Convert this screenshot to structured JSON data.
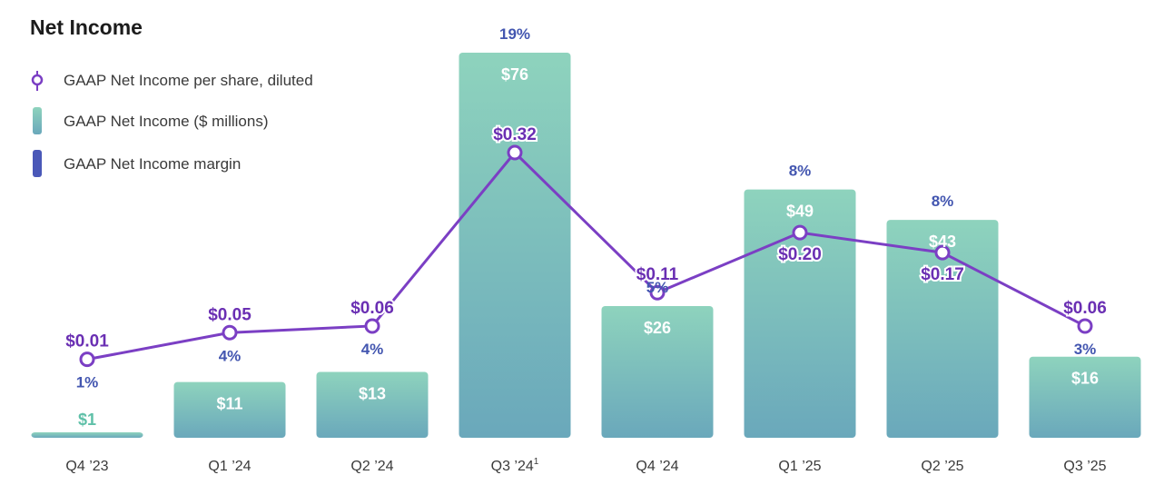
{
  "chart_data": {
    "type": "bar",
    "title": "Net Income",
    "categories": [
      "Q4 '23",
      "Q1 '24",
      "Q2 '24",
      "Q3 '24",
      "Q4 '24",
      "Q1 '25",
      "Q2 '25",
      "Q3 '25"
    ],
    "category_labels": [
      "Q4 ’23",
      "Q1 ’24",
      "Q2 ’24",
      "Q3 ’24",
      "Q4 ’24",
      "Q1 ’25",
      "Q2 ’25",
      "Q3 ’25"
    ],
    "category_footnotes": [
      "",
      "",
      "",
      "1",
      "",
      "",
      "",
      ""
    ],
    "series": [
      {
        "name": "GAAP Net Income ($ millions)",
        "kind": "bar",
        "values": [
          1,
          11,
          13,
          76,
          26,
          49,
          43,
          16
        ],
        "labels": [
          "$1",
          "$11",
          "$13",
          "$76",
          "$26",
          "$49",
          "$43",
          "$16"
        ]
      },
      {
        "name": "GAAP Net Income per share, diluted",
        "kind": "line",
        "values": [
          0.01,
          0.05,
          0.06,
          0.32,
          0.11,
          0.2,
          0.17,
          0.06
        ],
        "labels": [
          "$0.01",
          "$0.05",
          "$0.06",
          "$0.32",
          "$0.11",
          "$0.20",
          "$0.17",
          "$0.06"
        ]
      },
      {
        "name": "GAAP Net Income margin",
        "kind": "label",
        "values": [
          1,
          4,
          4,
          19,
          5,
          8,
          8,
          3
        ],
        "labels": [
          "1%",
          "4%",
          "4%",
          "19%",
          "5%",
          "8%",
          "8%",
          "3%"
        ]
      }
    ],
    "legend": [
      "GAAP Net Income per share, diluted",
      "GAAP Net Income ($ millions)",
      "GAAP Net Income margin"
    ],
    "legend_position": "top-left",
    "bar_ylim": [
      0,
      76
    ],
    "line_ylim": [
      0,
      0.32
    ],
    "grid": false
  },
  "colors": {
    "bar_top": "#8ed3bd",
    "bar_bottom": "#6aa8bb",
    "line": "#7b3fc4",
    "eps_text": "#6a2fb3",
    "margin_text": "#4356b0",
    "legend_margin_swatch": "#4a58b8"
  }
}
